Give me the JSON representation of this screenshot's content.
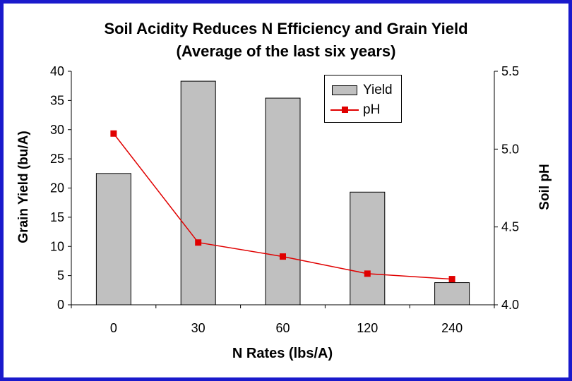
{
  "chart_data": {
    "type": "bar+line",
    "title_line1": "Soil Acidity Reduces N Efficiency and Grain Yield",
    "title_line2": "(Average of the last six years)",
    "xlabel": "N Rates (lbs/A)",
    "ylabel": "Grain Yield (bu/A)",
    "y2label": "Soil pH",
    "categories": [
      "0",
      "30",
      "60",
      "120",
      "240"
    ],
    "series": [
      {
        "name": "Yield",
        "type": "bar",
        "axis": "left",
        "color": "#c0c0c0",
        "values": [
          22.5,
          38.3,
          35.4,
          19.3,
          3.8
        ]
      },
      {
        "name": "pH",
        "type": "line",
        "axis": "right",
        "color": "#e00000",
        "values": [
          5.1,
          4.4,
          4.31,
          4.2,
          4.165
        ]
      }
    ],
    "ylim": [
      0,
      40
    ],
    "yticks": [
      "0",
      "5",
      "10",
      "15",
      "20",
      "25",
      "30",
      "35",
      "40"
    ],
    "y2lim": [
      4.0,
      5.5
    ],
    "y2ticks": [
      "4.0",
      "4.5",
      "5.0",
      "5.5"
    ],
    "legend_position": "top-right inside plot"
  }
}
